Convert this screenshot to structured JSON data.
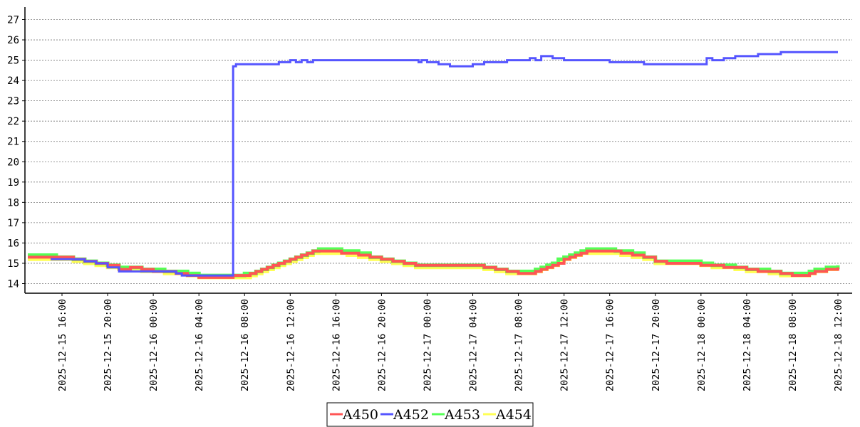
{
  "chart_data": {
    "type": "line",
    "ylim": [
      13.6,
      27.6
    ],
    "yticks": [
      "14",
      "15",
      "16",
      "17",
      "18",
      "19",
      "20",
      "21",
      "22",
      "23",
      "24",
      "25",
      "26",
      "27"
    ],
    "xlim": [
      "2025-12-15 13:00",
      "2025-12-18 13:00"
    ],
    "xticks": [
      "2025-12-15 16:00",
      "2025-12-15 20:00",
      "2025-12-16 00:00",
      "2025-12-16 04:00",
      "2025-12-16 08:00",
      "2025-12-16 12:00",
      "2025-12-16 16:00",
      "2025-12-16 20:00",
      "2025-12-17 00:00",
      "2025-12-17 04:00",
      "2025-12-17 08:00",
      "2025-12-17 12:00",
      "2025-12-17 16:00",
      "2025-12-17 20:00",
      "2025-12-18 00:00",
      "2025-12-18 04:00",
      "2025-12-18 08:00",
      "2025-12-18 12:00"
    ],
    "grid": "horizontal-dashed",
    "legend_position": "bottom-center",
    "series": [
      {
        "name": "A454",
        "color": "#ffff55",
        "width": 5,
        "points": [
          [
            "2025-12-15 13:00",
            15.2
          ],
          [
            "2025-12-15 15:00",
            15.2
          ],
          [
            "2025-12-15 17:00",
            15.1
          ],
          [
            "2025-12-15 18:00",
            15.0
          ],
          [
            "2025-12-15 19:00",
            14.9
          ],
          [
            "2025-12-15 20:00",
            14.8
          ],
          [
            "2025-12-15 21:00",
            14.7
          ],
          [
            "2025-12-15 23:00",
            14.6
          ],
          [
            "2025-12-16 01:00",
            14.5
          ],
          [
            "2025-12-16 03:00",
            14.4
          ],
          [
            "2025-12-16 04:00",
            14.3
          ],
          [
            "2025-12-16 08:00",
            14.3
          ],
          [
            "2025-12-16 08:30",
            14.4
          ],
          [
            "2025-12-16 09:00",
            14.5
          ],
          [
            "2025-12-16 09:30",
            14.6
          ],
          [
            "2025-12-16 10:00",
            14.7
          ],
          [
            "2025-12-16 10:30",
            14.8
          ],
          [
            "2025-12-16 11:00",
            14.9
          ],
          [
            "2025-12-16 11:30",
            15.0
          ],
          [
            "2025-12-16 12:00",
            15.1
          ],
          [
            "2025-12-16 12:30",
            15.2
          ],
          [
            "2025-12-16 13:00",
            15.3
          ],
          [
            "2025-12-16 13:30",
            15.4
          ],
          [
            "2025-12-16 14:00",
            15.5
          ],
          [
            "2025-12-16 16:00",
            15.5
          ],
          [
            "2025-12-16 17:00",
            15.4
          ],
          [
            "2025-12-16 18:00",
            15.3
          ],
          [
            "2025-12-16 19:00",
            15.2
          ],
          [
            "2025-12-16 20:00",
            15.1
          ],
          [
            "2025-12-16 21:00",
            15.0
          ],
          [
            "2025-12-16 22:00",
            14.9
          ],
          [
            "2025-12-16 23:00",
            14.8
          ],
          [
            "2025-12-17 05:00",
            14.7
          ],
          [
            "2025-12-17 06:00",
            14.6
          ],
          [
            "2025-12-17 07:00",
            14.5
          ],
          [
            "2025-12-17 09:00",
            14.5
          ],
          [
            "2025-12-17 09:30",
            14.6
          ],
          [
            "2025-12-17 10:00",
            14.7
          ],
          [
            "2025-12-17 10:30",
            14.8
          ],
          [
            "2025-12-17 11:00",
            14.9
          ],
          [
            "2025-12-17 11:30",
            15.1
          ],
          [
            "2025-12-17 12:00",
            15.2
          ],
          [
            "2025-12-17 12:30",
            15.3
          ],
          [
            "2025-12-17 13:00",
            15.4
          ],
          [
            "2025-12-17 13:30",
            15.5
          ],
          [
            "2025-12-17 16:00",
            15.5
          ],
          [
            "2025-12-17 17:00",
            15.4
          ],
          [
            "2025-12-17 18:00",
            15.3
          ],
          [
            "2025-12-17 19:00",
            15.2
          ],
          [
            "2025-12-17 20:00",
            15.0
          ],
          [
            "2025-12-18 00:00",
            14.9
          ],
          [
            "2025-12-18 01:00",
            14.8
          ],
          [
            "2025-12-18 03:00",
            14.7
          ],
          [
            "2025-12-18 04:00",
            14.6
          ],
          [
            "2025-12-18 06:00",
            14.5
          ],
          [
            "2025-12-18 07:00",
            14.4
          ],
          [
            "2025-12-18 09:00",
            14.4
          ],
          [
            "2025-12-18 09:30",
            14.5
          ],
          [
            "2025-12-18 10:00",
            14.6
          ],
          [
            "2025-12-18 11:00",
            14.7
          ],
          [
            "2025-12-18 12:00",
            14.7
          ]
        ]
      },
      {
        "name": "A453",
        "color": "#55ff55",
        "width": 5,
        "points": [
          [
            "2025-12-15 13:00",
            15.4
          ],
          [
            "2025-12-15 15:00",
            15.4
          ],
          [
            "2025-12-15 15:30",
            15.3
          ],
          [
            "2025-12-15 17:00",
            15.2
          ],
          [
            "2025-12-15 18:00",
            15.1
          ],
          [
            "2025-12-15 19:00",
            15.0
          ],
          [
            "2025-12-15 20:00",
            14.9
          ],
          [
            "2025-12-15 21:00",
            14.8
          ],
          [
            "2025-12-15 23:00",
            14.7
          ],
          [
            "2025-12-16 01:00",
            14.6
          ],
          [
            "2025-12-16 03:00",
            14.5
          ],
          [
            "2025-12-16 04:00",
            14.4
          ],
          [
            "2025-12-16 07:00",
            14.4
          ],
          [
            "2025-12-16 08:00",
            14.5
          ],
          [
            "2025-12-16 08:30",
            14.5
          ],
          [
            "2025-12-16 09:00",
            14.6
          ],
          [
            "2025-12-16 09:30",
            14.7
          ],
          [
            "2025-12-16 10:00",
            14.8
          ],
          [
            "2025-12-16 10:30",
            14.9
          ],
          [
            "2025-12-16 11:00",
            15.0
          ],
          [
            "2025-12-16 11:30",
            15.1
          ],
          [
            "2025-12-16 12:00",
            15.2
          ],
          [
            "2025-12-16 12:30",
            15.3
          ],
          [
            "2025-12-16 13:00",
            15.4
          ],
          [
            "2025-12-16 13:30",
            15.5
          ],
          [
            "2025-12-16 14:00",
            15.6
          ],
          [
            "2025-12-16 14:30",
            15.7
          ],
          [
            "2025-12-16 16:00",
            15.7
          ],
          [
            "2025-12-16 16:30",
            15.6
          ],
          [
            "2025-12-16 18:00",
            15.5
          ],
          [
            "2025-12-16 19:00",
            15.3
          ],
          [
            "2025-12-16 20:00",
            15.2
          ],
          [
            "2025-12-16 21:00",
            15.1
          ],
          [
            "2025-12-16 22:00",
            15.0
          ],
          [
            "2025-12-16 23:00",
            14.9
          ],
          [
            "2025-12-17 05:00",
            14.8
          ],
          [
            "2025-12-17 06:00",
            14.7
          ],
          [
            "2025-12-17 07:00",
            14.6
          ],
          [
            "2025-12-17 09:00",
            14.6
          ],
          [
            "2025-12-17 09:30",
            14.7
          ],
          [
            "2025-12-17 10:00",
            14.8
          ],
          [
            "2025-12-17 10:30",
            14.9
          ],
          [
            "2025-12-17 11:00",
            15.0
          ],
          [
            "2025-12-17 11:30",
            15.2
          ],
          [
            "2025-12-17 12:00",
            15.3
          ],
          [
            "2025-12-17 12:30",
            15.4
          ],
          [
            "2025-12-17 13:00",
            15.5
          ],
          [
            "2025-12-17 13:30",
            15.6
          ],
          [
            "2025-12-17 14:00",
            15.7
          ],
          [
            "2025-12-17 16:00",
            15.7
          ],
          [
            "2025-12-17 16:30",
            15.6
          ],
          [
            "2025-12-17 18:00",
            15.5
          ],
          [
            "2025-12-17 19:00",
            15.3
          ],
          [
            "2025-12-17 20:00",
            15.1
          ],
          [
            "2025-12-18 00:00",
            15.0
          ],
          [
            "2025-12-18 01:00",
            14.9
          ],
          [
            "2025-12-18 03:00",
            14.8
          ],
          [
            "2025-12-18 04:00",
            14.7
          ],
          [
            "2025-12-18 06:00",
            14.6
          ],
          [
            "2025-12-18 07:00",
            14.5
          ],
          [
            "2025-12-18 09:00",
            14.5
          ],
          [
            "2025-12-18 09:30",
            14.6
          ],
          [
            "2025-12-18 10:00",
            14.7
          ],
          [
            "2025-12-18 11:00",
            14.8
          ],
          [
            "2025-12-18 12:00",
            14.9
          ]
        ]
      },
      {
        "name": "A450",
        "color": "#ff5555",
        "width": 4,
        "points": [
          [
            "2025-12-15 13:00",
            15.3
          ],
          [
            "2025-12-15 16:00",
            15.3
          ],
          [
            "2025-12-15 17:00",
            15.2
          ],
          [
            "2025-12-15 18:00",
            15.1
          ],
          [
            "2025-12-15 19:00",
            15.0
          ],
          [
            "2025-12-15 20:00",
            14.9
          ],
          [
            "2025-12-15 21:00",
            14.7
          ],
          [
            "2025-12-15 22:00",
            14.8
          ],
          [
            "2025-12-15 23:00",
            14.7
          ],
          [
            "2025-12-16 00:00",
            14.6
          ],
          [
            "2025-12-16 02:00",
            14.5
          ],
          [
            "2025-12-16 03:00",
            14.4
          ],
          [
            "2025-12-16 04:00",
            14.3
          ],
          [
            "2025-12-16 07:00",
            14.4
          ],
          [
            "2025-12-16 08:00",
            14.4
          ],
          [
            "2025-12-16 08:30",
            14.5
          ],
          [
            "2025-12-16 09:00",
            14.6
          ],
          [
            "2025-12-16 09:30",
            14.7
          ],
          [
            "2025-12-16 10:00",
            14.8
          ],
          [
            "2025-12-16 10:30",
            14.9
          ],
          [
            "2025-12-16 11:00",
            15.0
          ],
          [
            "2025-12-16 11:30",
            15.1
          ],
          [
            "2025-12-16 12:00",
            15.2
          ],
          [
            "2025-12-16 12:30",
            15.3
          ],
          [
            "2025-12-16 13:00",
            15.4
          ],
          [
            "2025-12-16 13:30",
            15.5
          ],
          [
            "2025-12-16 14:00",
            15.6
          ],
          [
            "2025-12-16 16:00",
            15.6
          ],
          [
            "2025-12-16 16:30",
            15.5
          ],
          [
            "2025-12-16 17:00",
            15.5
          ],
          [
            "2025-12-16 18:00",
            15.4
          ],
          [
            "2025-12-16 19:00",
            15.3
          ],
          [
            "2025-12-16 20:00",
            15.2
          ],
          [
            "2025-12-16 21:00",
            15.1
          ],
          [
            "2025-12-16 22:00",
            15.0
          ],
          [
            "2025-12-16 23:00",
            14.9
          ],
          [
            "2025-12-17 05:00",
            14.8
          ],
          [
            "2025-12-17 06:00",
            14.7
          ],
          [
            "2025-12-17 07:00",
            14.6
          ],
          [
            "2025-12-17 08:00",
            14.5
          ],
          [
            "2025-12-17 09:00",
            14.5
          ],
          [
            "2025-12-17 09:30",
            14.6
          ],
          [
            "2025-12-17 10:00",
            14.7
          ],
          [
            "2025-12-17 10:30",
            14.8
          ],
          [
            "2025-12-17 11:00",
            14.9
          ],
          [
            "2025-12-17 11:30",
            15.0
          ],
          [
            "2025-12-17 12:00",
            15.2
          ],
          [
            "2025-12-17 12:30",
            15.3
          ],
          [
            "2025-12-17 13:00",
            15.4
          ],
          [
            "2025-12-17 13:30",
            15.5
          ],
          [
            "2025-12-17 14:00",
            15.6
          ],
          [
            "2025-12-17 16:00",
            15.6
          ],
          [
            "2025-12-17 17:00",
            15.5
          ],
          [
            "2025-12-17 18:00",
            15.4
          ],
          [
            "2025-12-17 19:00",
            15.3
          ],
          [
            "2025-12-17 20:00",
            15.1
          ],
          [
            "2025-12-17 21:00",
            15.0
          ],
          [
            "2025-12-18 00:00",
            14.9
          ],
          [
            "2025-12-18 02:00",
            14.8
          ],
          [
            "2025-12-18 04:00",
            14.7
          ],
          [
            "2025-12-18 05:00",
            14.6
          ],
          [
            "2025-12-18 07:00",
            14.5
          ],
          [
            "2025-12-18 08:00",
            14.4
          ],
          [
            "2025-12-18 09:00",
            14.4
          ],
          [
            "2025-12-18 09:30",
            14.5
          ],
          [
            "2025-12-18 10:00",
            14.6
          ],
          [
            "2025-12-18 11:00",
            14.7
          ],
          [
            "2025-12-18 12:00",
            14.8
          ]
        ]
      },
      {
        "name": "A452",
        "color": "#5555ff",
        "width": 3,
        "points": [
          [
            "2025-12-15 15:00",
            15.2
          ],
          [
            "2025-12-15 17:00",
            15.2
          ],
          [
            "2025-12-15 18:00",
            15.1
          ],
          [
            "2025-12-15 19:00",
            15.0
          ],
          [
            "2025-12-15 20:00",
            14.8
          ],
          [
            "2025-12-15 21:00",
            14.6
          ],
          [
            "2025-12-15 23:00",
            14.6
          ],
          [
            "2025-12-16 00:00",
            14.6
          ],
          [
            "2025-12-16 02:00",
            14.5
          ],
          [
            "2025-12-16 02:30",
            14.4
          ],
          [
            "2025-12-16 07:00",
            14.4
          ],
          [
            "2025-12-16 07:00",
            24.7
          ],
          [
            "2025-12-16 07:15",
            24.8
          ],
          [
            "2025-12-16 10:00",
            24.8
          ],
          [
            "2025-12-16 11:00",
            24.9
          ],
          [
            "2025-12-16 12:00",
            25.0
          ],
          [
            "2025-12-16 12:30",
            24.9
          ],
          [
            "2025-12-16 13:00",
            25.0
          ],
          [
            "2025-12-16 13:30",
            24.9
          ],
          [
            "2025-12-16 14:00",
            25.0
          ],
          [
            "2025-12-16 23:00",
            25.0
          ],
          [
            "2025-12-16 23:15",
            24.9
          ],
          [
            "2025-12-16 23:30",
            25.0
          ],
          [
            "2025-12-17 00:00",
            24.9
          ],
          [
            "2025-12-17 01:00",
            24.8
          ],
          [
            "2025-12-17 02:00",
            24.7
          ],
          [
            "2025-12-17 04:00",
            24.8
          ],
          [
            "2025-12-17 05:00",
            24.9
          ],
          [
            "2025-12-17 07:00",
            25.0
          ],
          [
            "2025-12-17 09:00",
            25.1
          ],
          [
            "2025-12-17 09:30",
            25.0
          ],
          [
            "2025-12-17 10:00",
            25.2
          ],
          [
            "2025-12-17 11:00",
            25.1
          ],
          [
            "2025-12-17 12:00",
            25.0
          ],
          [
            "2025-12-17 16:00",
            24.9
          ],
          [
            "2025-12-17 17:00",
            24.9
          ],
          [
            "2025-12-17 19:00",
            24.8
          ],
          [
            "2025-12-17 23:00",
            24.8
          ],
          [
            "2025-12-18 00:30",
            25.1
          ],
          [
            "2025-12-18 01:00",
            25.0
          ],
          [
            "2025-12-18 02:00",
            25.1
          ],
          [
            "2025-12-18 03:00",
            25.2
          ],
          [
            "2025-12-18 05:00",
            25.3
          ],
          [
            "2025-12-18 07:00",
            25.4
          ],
          [
            "2025-12-18 12:00",
            25.4
          ]
        ]
      }
    ],
    "legend": [
      "A450",
      "A452",
      "A453",
      "A454"
    ]
  }
}
